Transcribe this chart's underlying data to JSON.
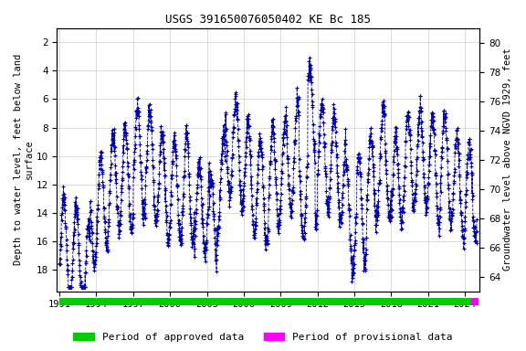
{
  "title": "USGS 391650076050402 KE Bc 185",
  "ylabel_left": "Depth to water level, feet below land\nsurface",
  "ylabel_right": "Groundwater level above NGVD 1929, feet",
  "xlabel_ticks": [
    1991,
    1994,
    1997,
    2000,
    2003,
    2006,
    2009,
    2012,
    2015,
    2018,
    2021,
    2024
  ],
  "ylim_left": [
    19.5,
    1.0
  ],
  "ylim_right": [
    63.0,
    81.0
  ],
  "yticks_left": [
    2,
    4,
    6,
    8,
    10,
    12,
    14,
    16,
    18
  ],
  "yticks_right": [
    64,
    66,
    68,
    70,
    72,
    74,
    76,
    78,
    80
  ],
  "marker_color": "#0000bb",
  "marker_style": "+",
  "marker_size": 2.5,
  "line_color": "#0000bb",
  "line_width": 0.6,
  "linestyle": "--",
  "grid_color": "#cccccc",
  "background_color": "#ffffff",
  "approved_bar_color": "#00cc00",
  "provisional_bar_color": "#ff00ff",
  "title_fontsize": 9,
  "axis_fontsize": 7.5,
  "tick_fontsize": 7.5,
  "legend_fontsize": 8
}
